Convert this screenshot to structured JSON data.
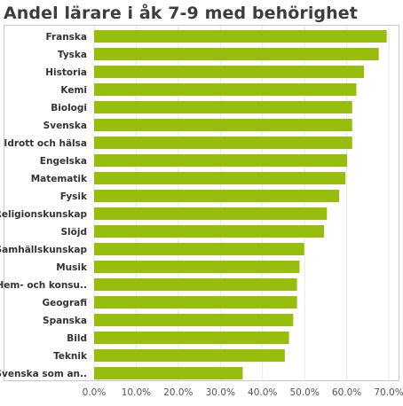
{
  "title": "Andel lärare i åk 7-9 med behörighet",
  "colors": {
    "bar": "#97be0d",
    "grid": "#e6e6e6",
    "axis": "#c8c8c8"
  },
  "chart_data": {
    "type": "bar",
    "orientation": "horizontal",
    "title": "Andel lärare i åk 7-9 med behörighet",
    "categories": [
      "Franska",
      "Tyska",
      "Historia",
      "Kemi",
      "Biologi",
      "Svenska",
      "Idrott och hälsa",
      "Engelska",
      "Matematik",
      "Fysik",
      "Religionskunskap",
      "Slöjd",
      "Samhällskunskap",
      "Musik",
      "Hem- och konsu..",
      "Geografi",
      "Spanska",
      "Bild",
      "Teknik",
      "Svenska som an.."
    ],
    "values": [
      69.5,
      67.6,
      64.1,
      62.3,
      61.3,
      61.3,
      61.3,
      60.1,
      59.7,
      58.2,
      55.3,
      54.6,
      49.9,
      48.8,
      48.2,
      48.2,
      47.3,
      46.3,
      45.3,
      35.3
    ],
    "xlim": [
      0,
      72
    ],
    "ticks": [
      "0.0%",
      "10.0%",
      "20.0%",
      "30.0%",
      "40.0%",
      "50.0%",
      "60.0%",
      "70.0%"
    ],
    "tick_values": [
      0,
      10,
      20,
      30,
      40,
      50,
      60,
      70
    ],
    "grid": true
  }
}
